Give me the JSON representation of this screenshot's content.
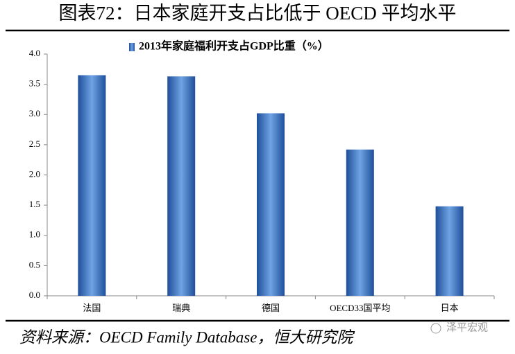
{
  "header": {
    "title": "图表72：日本家庭开支占比低于 OECD 平均水平"
  },
  "chart_data": {
    "type": "bar",
    "categories": [
      "法国",
      "瑞典",
      "德国",
      "OECD33国平均",
      "日本"
    ],
    "series": [
      {
        "name": "2013年家庭福利开支占GDP比重（%）",
        "color": "#3a74c4",
        "values": [
          3.65,
          3.63,
          3.02,
          2.42,
          1.48
        ]
      }
    ],
    "ylim": [
      0,
      4
    ],
    "yticks": [
      {
        "value": 0,
        "label": "0.0"
      },
      0.5,
      {
        "value": 1,
        "label": "1.0"
      },
      1.5,
      {
        "value": 2,
        "label": "2.0"
      },
      2.5,
      {
        "value": 3,
        "label": "3.0"
      },
      3.5,
      {
        "value": 4,
        "label": "4.0"
      }
    ],
    "grid": false,
    "legend": "top"
  },
  "footer": {
    "source": "资料来源：OECD Family Database，恒大研究院",
    "watermark": "泽平宏观"
  }
}
